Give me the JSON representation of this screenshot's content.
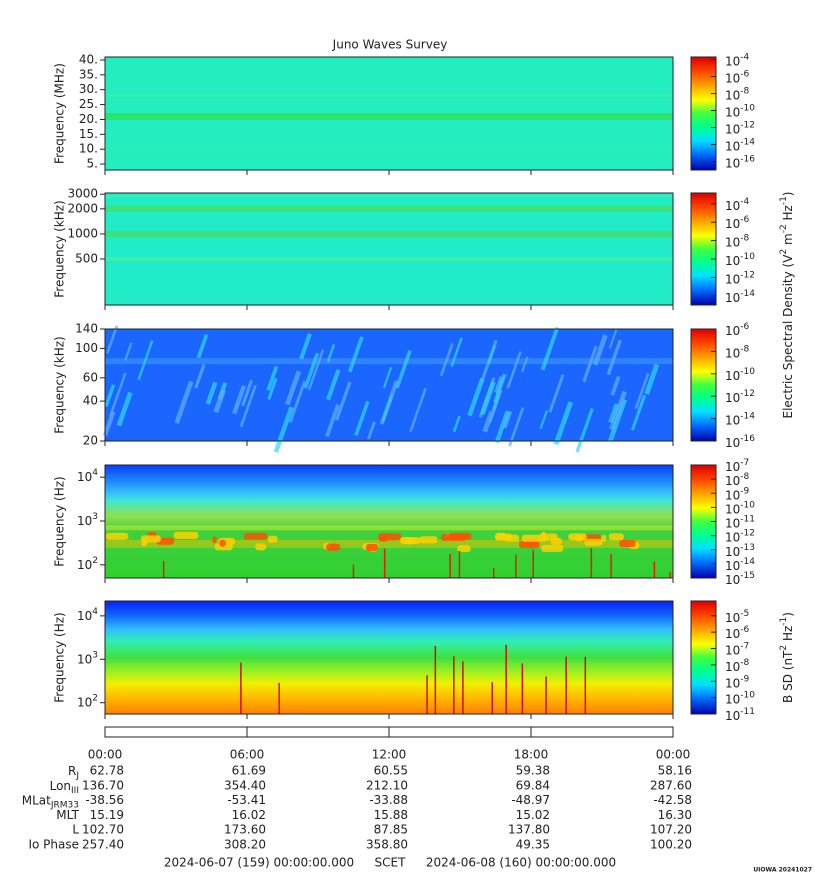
{
  "title": "Juno Waves Survey",
  "chart_data": [
    {
      "type": "spectrogram",
      "ylabel": "Frequency (MHz)",
      "log": false,
      "ylim": [
        3,
        41
      ],
      "yticks": [
        {
          "value": 40,
          "label": "40."
        },
        {
          "value": 35,
          "label": "35."
        },
        {
          "value": 30,
          "label": "30."
        },
        {
          "value": 25,
          "label": "25."
        },
        {
          "value": 20,
          "label": "20."
        },
        {
          "value": 15,
          "label": "15."
        },
        {
          "value": 10,
          "label": "10."
        },
        {
          "value": 5,
          "label": "5."
        }
      ],
      "colorbar": {
        "lim": [
          1e-17,
          0.0002
        ],
        "ticks": [
          {
            "value": 0.0001,
            "label": [
              "10",
              "-4"
            ]
          },
          {
            "value": 1e-06,
            "label": [
              "10",
              "-6"
            ]
          },
          {
            "value": 1e-08,
            "label": [
              "10",
              "-8"
            ]
          },
          {
            "value": 1e-10,
            "label": [
              "10",
              "-10"
            ]
          },
          {
            "value": 1e-12,
            "label": [
              "10",
              "-12"
            ]
          },
          {
            "value": 1e-14,
            "label": [
              "10",
              "-14"
            ]
          },
          {
            "value": 1e-16,
            "label": [
              "10",
              "-16"
            ]
          }
        ]
      }
    },
    {
      "type": "spectrogram",
      "ylabel": "Frequency (kHz)",
      "log": true,
      "ylim": [
        140,
        3100
      ],
      "yticks": [
        3000,
        2000,
        1000,
        500
      ],
      "colorbar": {
        "lim": [
          1e-15,
          0.0015
        ],
        "ticks": [
          {
            "value": 0.0001,
            "label": [
              "10",
              "-4"
            ]
          },
          {
            "value": 1e-06,
            "label": [
              "10",
              "-6"
            ]
          },
          {
            "value": 1e-08,
            "label": [
              "10",
              "-8"
            ]
          },
          {
            "value": 1e-10,
            "label": [
              "10",
              "-10"
            ]
          },
          {
            "value": 1e-12,
            "label": [
              "10",
              "-12"
            ]
          },
          {
            "value": 1e-14,
            "label": [
              "10",
              "-14"
            ]
          }
        ]
      }
    },
    {
      "type": "spectrogram",
      "ylabel": "Frequency (kHz)",
      "log": true,
      "ylim": [
        20,
        140
      ],
      "yticks": [
        140,
        100,
        60,
        40,
        20
      ],
      "colorbar": {
        "lim": [
          1e-16,
          1e-06
        ],
        "ticks": [
          {
            "value": 1e-06,
            "label": [
              "10",
              "-6"
            ]
          },
          {
            "value": 1e-08,
            "label": [
              "10",
              "-8"
            ]
          },
          {
            "value": 1e-10,
            "label": [
              "10",
              "-10"
            ]
          },
          {
            "value": 1e-12,
            "label": [
              "10",
              "-12"
            ]
          },
          {
            "value": 1e-14,
            "label": [
              "10",
              "-14"
            ]
          },
          {
            "value": 1e-16,
            "label": [
              "10",
              "-16"
            ]
          }
        ]
      }
    },
    {
      "type": "spectrogram",
      "ylabel": "Frequency (Hz)",
      "log": true,
      "ylim": [
        50,
        19000
      ],
      "yticks": [
        {
          "value": 10000,
          "label": [
            "10",
            "4"
          ]
        },
        {
          "value": 1000,
          "label": [
            "10",
            "3"
          ]
        },
        {
          "value": 100,
          "label": [
            "10",
            "2"
          ]
        }
      ],
      "colorbar": {
        "lim": [
          1e-15,
          1e-07
        ],
        "ticks": [
          {
            "value": 1e-07,
            "label": [
              "10",
              "-7"
            ]
          },
          {
            "value": 1e-08,
            "label": [
              "10",
              "-8"
            ]
          },
          {
            "value": 1e-09,
            "label": [
              "10",
              "-9"
            ]
          },
          {
            "value": 1e-10,
            "label": [
              "10",
              "-10"
            ]
          },
          {
            "value": 1e-11,
            "label": [
              "10",
              "-11"
            ]
          },
          {
            "value": 1e-12,
            "label": [
              "10",
              "-12"
            ]
          },
          {
            "value": 1e-13,
            "label": [
              "10",
              "-13"
            ]
          },
          {
            "value": 1e-14,
            "label": [
              "10",
              "-14"
            ]
          },
          {
            "value": 1e-15,
            "label": [
              "10",
              "-15"
            ]
          }
        ]
      }
    },
    {
      "type": "spectrogram",
      "ylabel": "Frequency (Hz)",
      "log": true,
      "ylim": [
        55,
        22000
      ],
      "yticks": [
        {
          "value": 10000,
          "label": [
            "10",
            "4"
          ]
        },
        {
          "value": 1000,
          "label": [
            "10",
            "3"
          ]
        },
        {
          "value": 100,
          "label": [
            "10",
            "2"
          ]
        }
      ],
      "colorbar": {
        "lim": [
          1e-11,
          8e-05
        ],
        "label": [
          "B SD (nT",
          "2",
          " Hz",
          "-1",
          ")"
        ],
        "ticks": [
          {
            "value": 1e-05,
            "label": [
              "10",
              "-5"
            ]
          },
          {
            "value": 1e-06,
            "label": [
              "10",
              "-6"
            ]
          },
          {
            "value": 1e-07,
            "label": [
              "10",
              "-7"
            ]
          },
          {
            "value": 1e-08,
            "label": [
              "10",
              "-8"
            ]
          },
          {
            "value": 1e-09,
            "label": [
              "10",
              "-9"
            ]
          },
          {
            "value": 1e-10,
            "label": [
              "10",
              "-10"
            ]
          },
          {
            "value": 1e-11,
            "label": [
              "10",
              "-11"
            ]
          }
        ]
      }
    }
  ],
  "electric_colorbar_label": [
    "Electric Spectral Density (V",
    "2",
    " m",
    "-2",
    " Hz",
    "-1",
    ")"
  ],
  "time_axis": {
    "xlim": [
      0,
      24
    ],
    "xticks": [
      {
        "value": 0,
        "label": "00:00"
      },
      {
        "value": 6,
        "label": "06:00"
      },
      {
        "value": 12,
        "label": "12:00"
      },
      {
        "value": 18,
        "label": "18:00"
      },
      {
        "value": 24,
        "label": "00:00"
      }
    ]
  },
  "ephemeris": [
    {
      "label": [
        "R",
        "J"
      ],
      "values": [
        "62.78",
        "61.69",
        "60.55",
        "59.38",
        "58.16"
      ]
    },
    {
      "label": [
        "Lon",
        "III"
      ],
      "values": [
        "136.70",
        "354.40",
        "212.10",
        "69.84",
        "287.60"
      ]
    },
    {
      "label": [
        "MLat",
        "JRM33"
      ],
      "values": [
        "-38.56",
        "-53.41",
        "-33.88",
        "-48.97",
        "-42.58"
      ]
    },
    {
      "label": "MLT",
      "values": [
        "15.19",
        "16.02",
        "15.88",
        "15.02",
        "16.30"
      ]
    },
    {
      "label": "L",
      "values": [
        "102.70",
        "173.60",
        "87.85",
        "137.80",
        "107.20"
      ]
    },
    {
      "label": "Io Phase",
      "values": [
        "257.40",
        "308.20",
        "358.80",
        "49.35",
        "100.20"
      ]
    }
  ],
  "footer": {
    "start": "2024-06-07 (159) 00:00:00.000",
    "scet": "SCET",
    "end": "2024-06-08 (160) 00:00:00.000"
  },
  "credit": "UIOWA 20241027"
}
